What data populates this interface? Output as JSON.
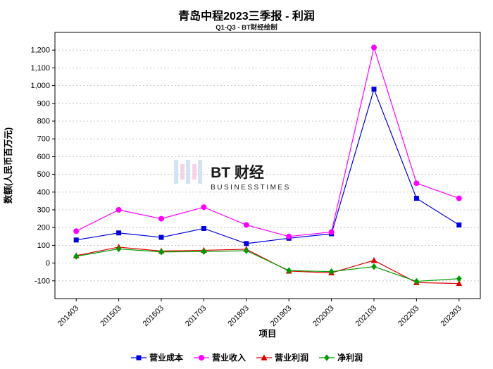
{
  "chart_data": {
    "type": "line",
    "title": "青岛中程2023三季报 - 利润",
    "subtitle": "Q1-Q3 - BT财经绘制",
    "xlabel": "项目",
    "ylabel": "数额(人民币百万元)",
    "categories": [
      "201403",
      "201503",
      "201603",
      "201703",
      "201803",
      "201903",
      "202003",
      "202103",
      "202203",
      "202303"
    ],
    "ylim": [
      -200,
      1300
    ],
    "yticks": [
      -100,
      0,
      100,
      200,
      300,
      400,
      500,
      600,
      700,
      800,
      900,
      1000,
      1100,
      1200
    ],
    "grid": true,
    "legend_position": "bottom",
    "watermark": {
      "line1": "BT 财经",
      "line2": "BUSINESSTIMES"
    },
    "colors": {
      "axis": "#000000",
      "gridline": "#bbbbbb",
      "watermark": "#c9dcee"
    },
    "series": [
      {
        "name": "营业成本",
        "marker": "square",
        "color": "#0000dd",
        "values": [
          130,
          170,
          145,
          195,
          110,
          140,
          165,
          980,
          365,
          215
        ]
      },
      {
        "name": "营业收入",
        "marker": "circle",
        "color": "#ff00ff",
        "values": [
          180,
          300,
          250,
          315,
          215,
          150,
          175,
          1215,
          450,
          365
        ]
      },
      {
        "name": "营业利润",
        "marker": "triangle",
        "color": "#dd0000",
        "values": [
          42,
          90,
          68,
          72,
          78,
          -45,
          -55,
          15,
          -110,
          -115
        ]
      },
      {
        "name": "净利润",
        "marker": "diamond",
        "color": "#009900",
        "values": [
          38,
          80,
          63,
          65,
          70,
          -42,
          -48,
          -20,
          -103,
          -88
        ]
      }
    ]
  }
}
